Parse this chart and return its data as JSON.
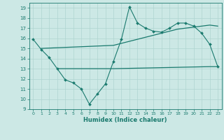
{
  "xlabel": "Humidex (Indice chaleur)",
  "ylabel": "",
  "bg_color": "#cce8e5",
  "line_color": "#1a7a6e",
  "grid_color": "#afd4d0",
  "ylim": [
    9,
    19.5
  ],
  "xlim": [
    -0.5,
    23.5
  ],
  "yticks": [
    9,
    10,
    11,
    12,
    13,
    14,
    15,
    16,
    17,
    18,
    19
  ],
  "xticks": [
    0,
    1,
    2,
    3,
    4,
    5,
    6,
    7,
    8,
    9,
    10,
    11,
    12,
    13,
    14,
    15,
    16,
    17,
    18,
    19,
    20,
    21,
    22,
    23
  ],
  "series1_x": [
    0,
    1,
    2,
    3,
    4,
    5,
    6,
    7,
    8,
    9,
    10,
    11,
    12,
    13,
    14,
    15,
    16,
    17,
    18,
    19,
    20,
    21,
    22,
    23
  ],
  "series1_y": [
    15.9,
    14.9,
    14.1,
    13.0,
    11.9,
    11.6,
    11.0,
    9.5,
    10.5,
    11.5,
    13.7,
    15.9,
    19.1,
    17.5,
    17.0,
    16.7,
    16.6,
    17.0,
    17.5,
    17.5,
    17.2,
    16.5,
    15.4,
    13.2
  ],
  "series2_x": [
    3,
    10,
    22,
    23
  ],
  "series2_y": [
    13.0,
    13.0,
    13.2,
    13.2
  ],
  "series3_x": [
    1,
    10,
    11,
    12,
    13,
    14,
    15,
    16,
    17,
    18,
    19,
    20,
    21,
    22,
    23
  ],
  "series3_y": [
    15.0,
    15.3,
    15.5,
    15.7,
    15.9,
    16.1,
    16.3,
    16.5,
    16.7,
    16.9,
    17.0,
    17.1,
    17.2,
    17.3,
    17.2
  ]
}
